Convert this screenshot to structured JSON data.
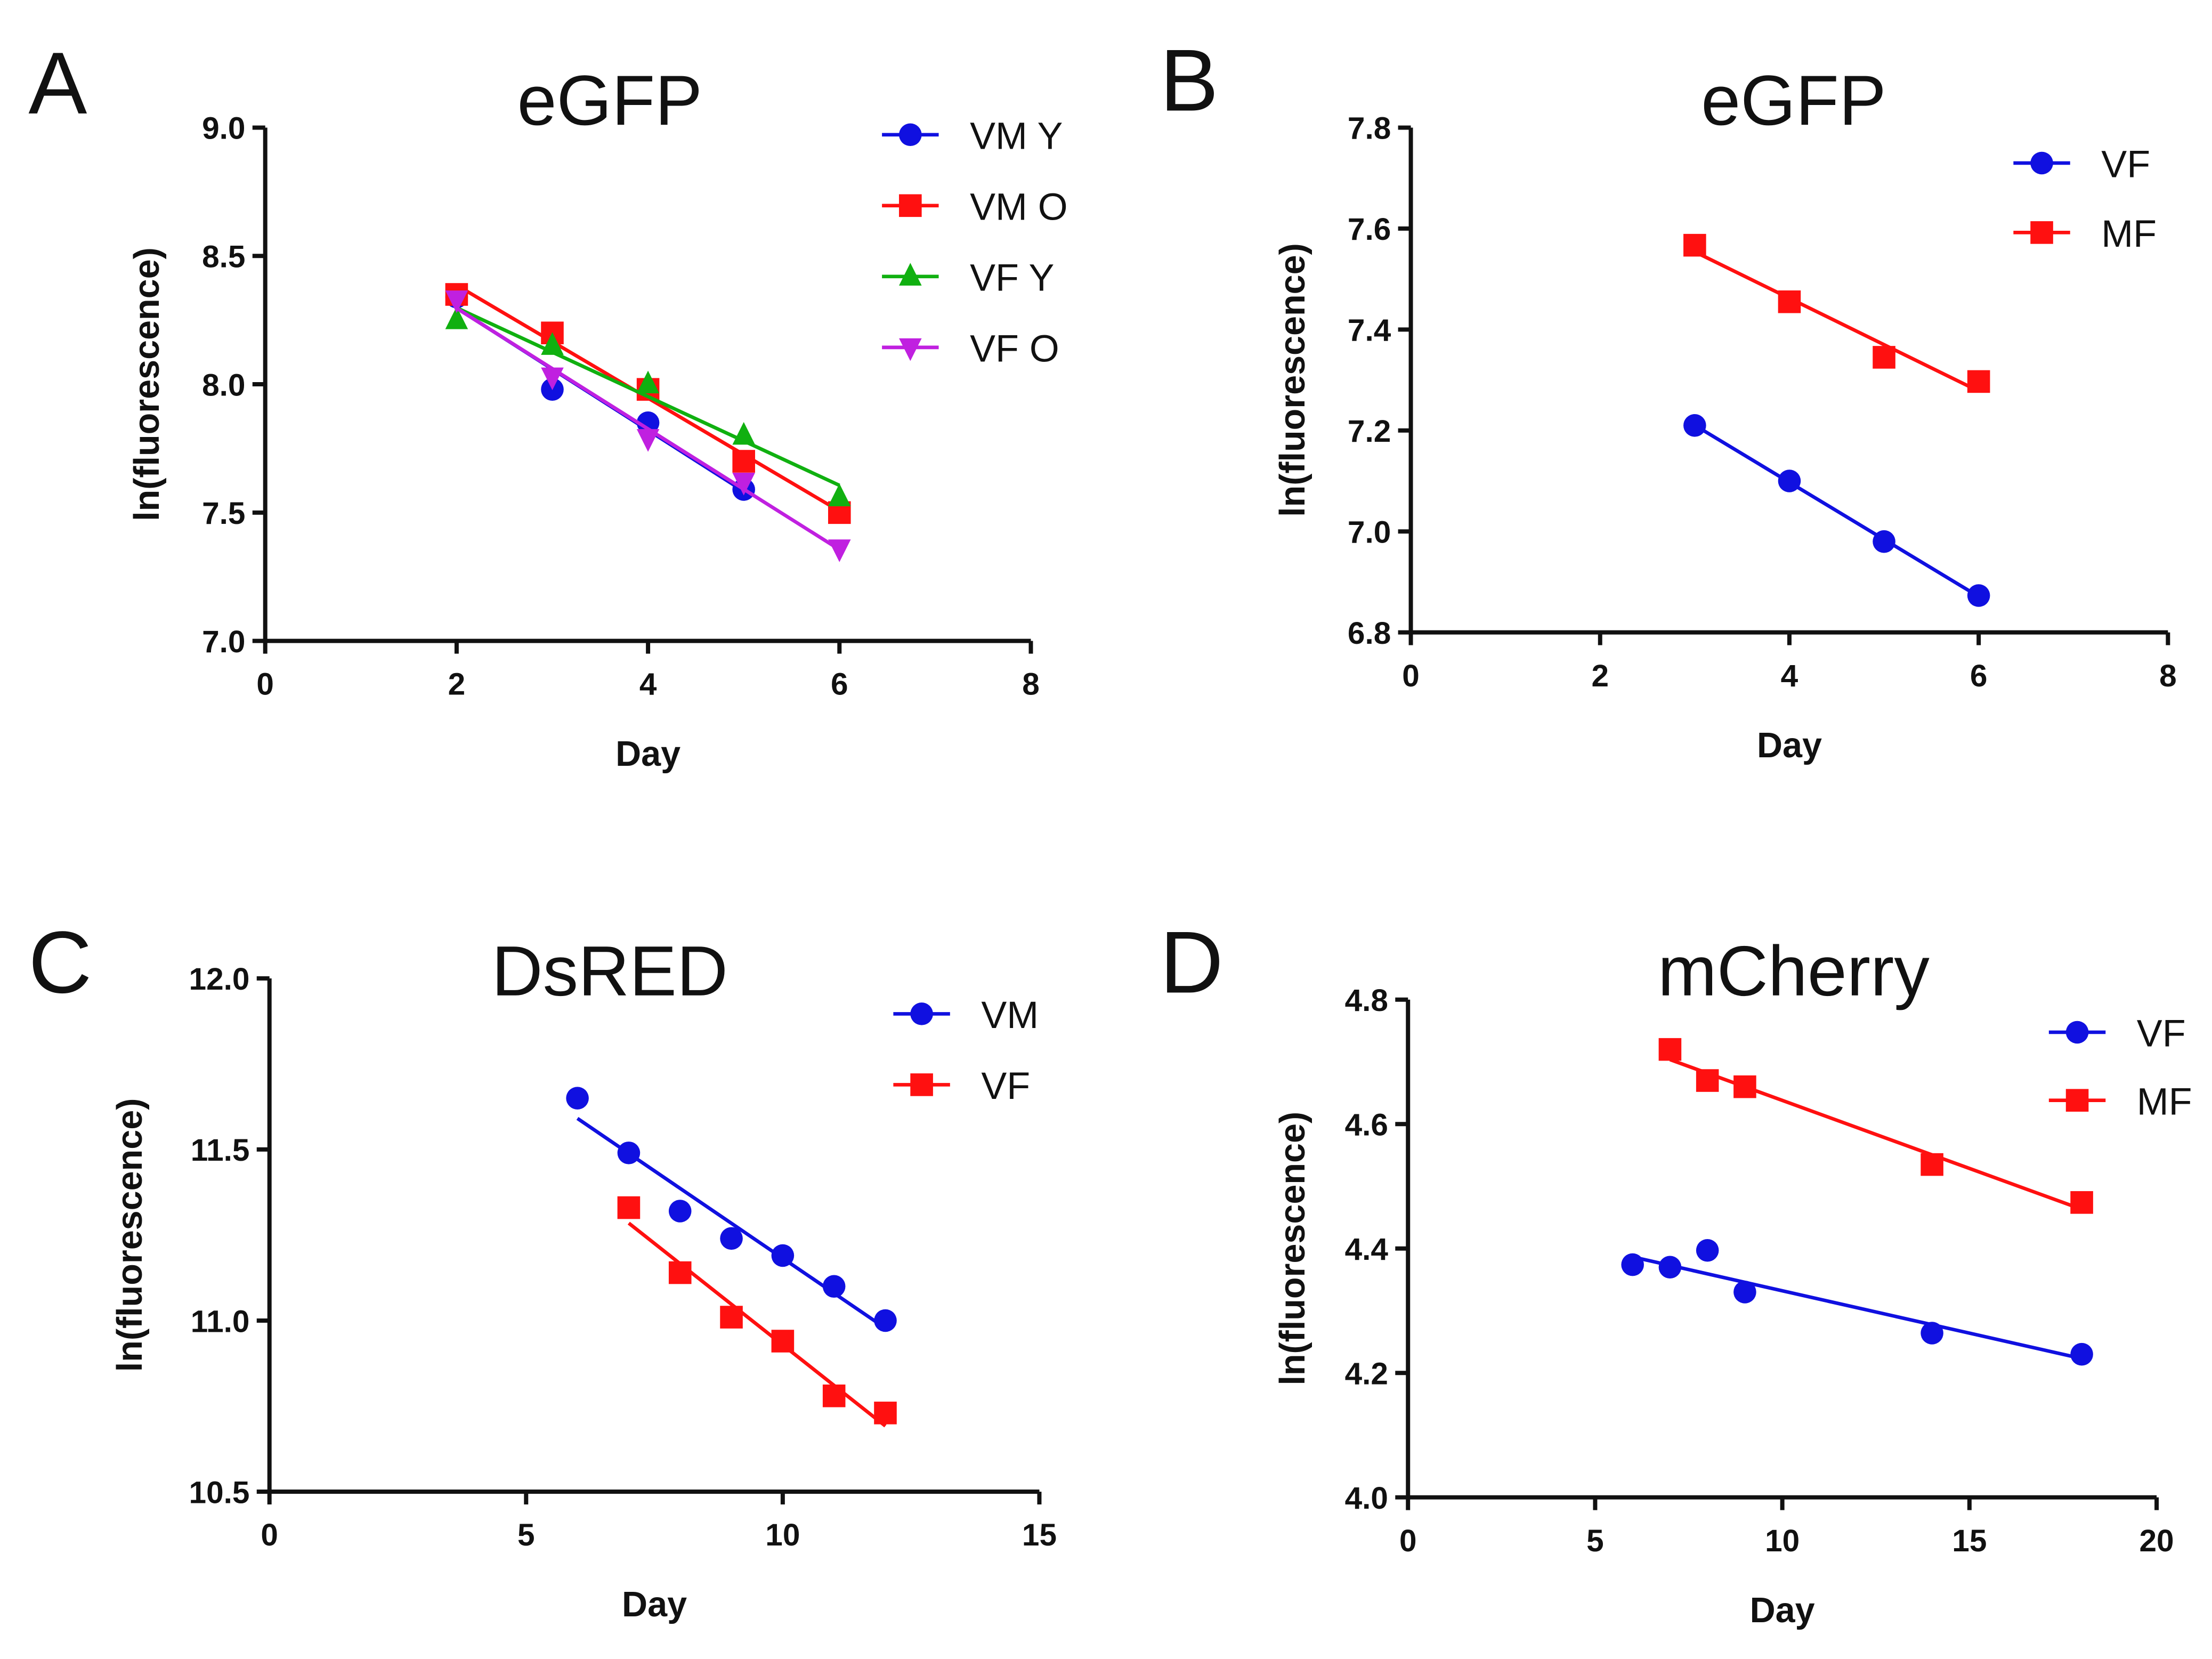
{
  "chart_data": [
    {
      "panel_label": "A",
      "type": "scatter",
      "title": "eGFP",
      "xlabel": "Day",
      "ylabel": "ln(fluorescence)",
      "xlim": [
        0,
        8
      ],
      "ylim": [
        7.0,
        9.0
      ],
      "xticks": [
        "0",
        "2",
        "4",
        "6",
        "8"
      ],
      "yticks": [
        "7.0",
        "7.5",
        "8.0",
        "8.5",
        "9.0"
      ],
      "legend_position": "top-right",
      "series": [
        {
          "name": "VM Y",
          "color": "#1010e0",
          "marker": "circle",
          "x": [
            2,
            3,
            4,
            5
          ],
          "y": [
            8.34,
            7.98,
            7.85,
            7.59
          ]
        },
        {
          "name": "VM O",
          "color": "#ff1010",
          "marker": "square",
          "x": [
            2,
            3,
            4,
            5,
            6
          ],
          "y": [
            8.35,
            8.2,
            7.98,
            7.7,
            7.5
          ]
        },
        {
          "name": "VF Y",
          "color": "#10b010",
          "marker": "triangle-up",
          "x": [
            2,
            3,
            4,
            5,
            6
          ],
          "y": [
            8.25,
            8.15,
            8.0,
            7.8,
            7.56
          ]
        },
        {
          "name": "VF O",
          "color": "#c020e0",
          "marker": "triangle-down",
          "x": [
            2,
            3,
            4,
            5,
            6
          ],
          "y": [
            8.33,
            8.03,
            7.79,
            7.62,
            7.36
          ]
        }
      ]
    },
    {
      "panel_label": "B",
      "type": "scatter",
      "title": "eGFP",
      "xlabel": "Day",
      "ylabel": "ln(fluorescence)",
      "xlim": [
        0,
        8
      ],
      "ylim": [
        6.8,
        7.8
      ],
      "xticks": [
        "0",
        "2",
        "4",
        "6",
        "8"
      ],
      "yticks": [
        "6.8",
        "7.0",
        "7.2",
        "7.4",
        "7.6",
        "7.8"
      ],
      "legend_position": "top-right",
      "series": [
        {
          "name": "VF",
          "color": "#1010e0",
          "marker": "circle",
          "x": [
            3,
            4,
            5,
            6
          ],
          "y": [
            7.21,
            7.1,
            6.98,
            6.873
          ]
        },
        {
          "name": "MF",
          "color": "#ff1010",
          "marker": "square",
          "x": [
            3,
            4,
            5,
            6
          ],
          "y": [
            7.567,
            7.455,
            7.345,
            7.297
          ]
        }
      ]
    },
    {
      "panel_label": "C",
      "type": "scatter",
      "title": "DsRED",
      "xlabel": "Day",
      "ylabel": "ln(fluorescence)",
      "xlim": [
        0,
        15
      ],
      "ylim": [
        10.5,
        12.0
      ],
      "xticks": [
        "0",
        "5",
        "10",
        "15"
      ],
      "yticks": [
        "10.5",
        "11.0",
        "11.5",
        "12.0"
      ],
      "legend_position": "top-right",
      "series": [
        {
          "name": "VM",
          "color": "#1010e0",
          "marker": "circle",
          "x": [
            6,
            7,
            8,
            9,
            10,
            11,
            12
          ],
          "y": [
            11.65,
            11.49,
            11.32,
            11.24,
            11.19,
            11.1,
            11.0
          ]
        },
        {
          "name": "VF",
          "color": "#ff1010",
          "marker": "square",
          "x": [
            7,
            8,
            9,
            10,
            11,
            12
          ],
          "y": [
            11.33,
            11.14,
            11.01,
            10.94,
            10.78,
            10.73
          ]
        }
      ]
    },
    {
      "panel_label": "D",
      "type": "scatter",
      "title": "mCherry",
      "xlabel": "Day",
      "ylabel": "ln(fluorescence)",
      "xlim": [
        0,
        20
      ],
      "ylim": [
        4.0,
        4.8
      ],
      "xticks": [
        "0",
        "5",
        "10",
        "15",
        "20"
      ],
      "yticks": [
        "4.0",
        "4.2",
        "4.4",
        "4.6",
        "4.8"
      ],
      "legend_position": "top-right",
      "series": [
        {
          "name": "VF",
          "color": "#1010e0",
          "marker": "circle",
          "x": [
            6,
            7,
            8,
            9,
            14,
            18
          ],
          "y": [
            4.374,
            4.37,
            4.397,
            4.33,
            4.264,
            4.23
          ]
        },
        {
          "name": "MF",
          "color": "#ff1010",
          "marker": "square",
          "x": [
            7,
            8,
            9,
            14,
            18
          ],
          "y": [
            4.72,
            4.67,
            4.66,
            4.535,
            4.474
          ]
        }
      ]
    }
  ]
}
